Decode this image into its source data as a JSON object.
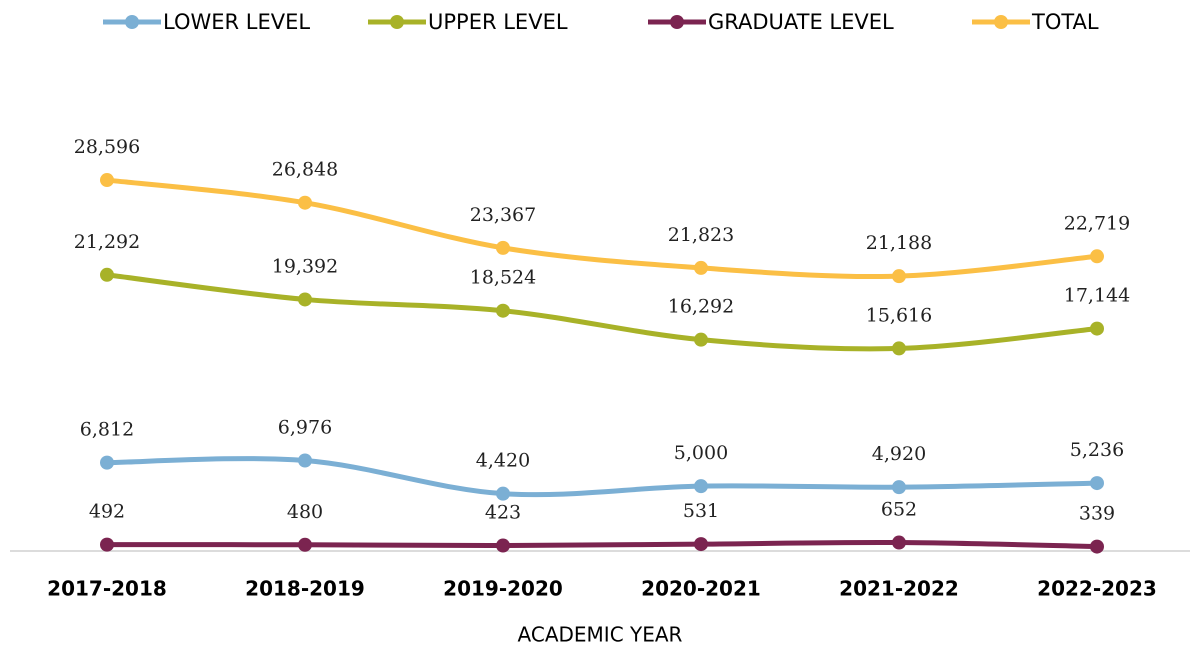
{
  "chart_data": {
    "type": "line",
    "x_label": "ACADEMIC YEAR",
    "categories": [
      "2017-2018",
      "2018-2019",
      "2019-2020",
      "2020-2021",
      "2021-2022",
      "2022-2023"
    ],
    "ylim": [
      0,
      36000
    ],
    "series": [
      {
        "name": "LOWER LEVEL",
        "color": "#7bafd4",
        "values": [
          6812,
          6976,
          4420,
          5000,
          4920,
          5236
        ],
        "value_labels": [
          "6,812",
          "6,976",
          "4,420",
          "5,000",
          "4,920",
          "5,236"
        ]
      },
      {
        "name": "UPPER LEVEL",
        "color": "#a8b228",
        "values": [
          21292,
          19392,
          18524,
          16292,
          15616,
          17144
        ],
        "value_labels": [
          "21,292",
          "19,392",
          "18,524",
          "16,292",
          "15,616",
          "17,144"
        ]
      },
      {
        "name": "GRADUATE LEVEL",
        "color": "#7b2450",
        "values": [
          492,
          480,
          423,
          531,
          652,
          339
        ],
        "value_labels": [
          "492",
          "480",
          "423",
          "531",
          "652",
          "339"
        ]
      },
      {
        "name": "TOTAL",
        "color": "#fbbf45",
        "values": [
          28596,
          26848,
          23367,
          21823,
          21188,
          22719
        ],
        "value_labels": [
          "28,596",
          "26,848",
          "23,367",
          "21,823",
          "21,188",
          "22,719"
        ]
      }
    ]
  }
}
